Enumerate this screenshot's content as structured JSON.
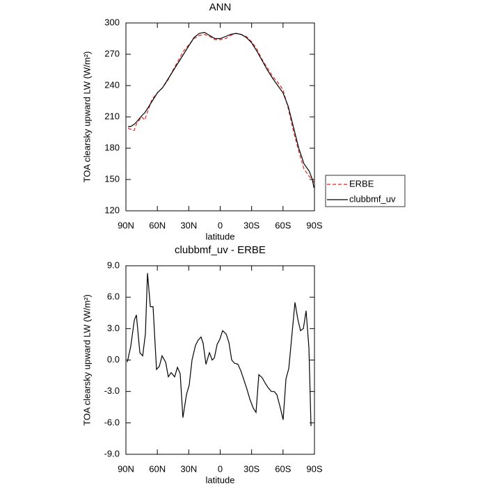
{
  "chart_data": [
    {
      "type": "line",
      "title": "ANN",
      "x_label": "latitude",
      "y_label": "TOA clearsky upward LW (W/m²)",
      "x": [
        88,
        85,
        82,
        80,
        75,
        72,
        70,
        65,
        60,
        55,
        50,
        45,
        40,
        35,
        30,
        25,
        20,
        15,
        10,
        5,
        0,
        -5,
        -10,
        -15,
        -20,
        -25,
        -30,
        -35,
        -40,
        -45,
        -50,
        -55,
        -60,
        -65,
        -70,
        -75,
        -80,
        -85,
        -88,
        -89.5
      ],
      "series": [
        {
          "name": "ERBE",
          "color": "#e8231c",
          "line_style": "dashed",
          "values": [
            199,
            198,
            197,
            203,
            210,
            207,
            213,
            227,
            233,
            238,
            245,
            255,
            264,
            273,
            279,
            285,
            288,
            289,
            287,
            284,
            284,
            285,
            288,
            290,
            289,
            287,
            282,
            275,
            265,
            257,
            249,
            243,
            236,
            218,
            196,
            177,
            160,
            153,
            150,
            147
          ]
        },
        {
          "name": "clubbmf_uv",
          "color": "#000000",
          "line_style": "solid",
          "values": [
            200.5,
            201,
            203,
            205,
            211,
            214,
            217,
            225,
            233,
            238,
            246,
            254,
            262,
            270,
            278,
            286,
            290,
            291,
            288,
            285,
            285,
            287,
            289,
            290,
            289,
            286,
            281,
            273,
            264,
            255,
            247,
            240,
            233,
            220,
            200,
            180,
            165,
            158,
            150,
            142
          ]
        }
      ],
      "xlim": [
        90,
        -90
      ],
      "xticks": [
        {
          "value": 90,
          "label": "90N"
        },
        {
          "value": 60,
          "label": "60N"
        },
        {
          "value": 30,
          "label": "30N"
        },
        0,
        {
          "value": -30,
          "label": "30S"
        },
        {
          "value": -60,
          "label": "60S"
        },
        {
          "value": -90,
          "label": "90S"
        }
      ],
      "ylim": [
        120,
        300
      ],
      "yticks": [
        120,
        150,
        180,
        210,
        240,
        270,
        300
      ],
      "legend": "outside-right"
    },
    {
      "type": "line",
      "title": "clubbmf_uv - ERBE",
      "x_label": "latitude",
      "y_label": "TOA clearsky upward LW (W/m²)",
      "x": [
        88.7,
        85.4,
        82,
        80,
        76.7,
        74,
        71.4,
        69.4,
        66.7,
        64.1,
        60.8,
        58.1,
        55.5,
        52.1,
        49.5,
        46.8,
        43.5,
        40.8,
        38.2,
        35.6,
        32.2,
        29.6,
        26.9,
        23.6,
        21,
        18.3,
        16.3,
        13.6,
        10.3,
        7.6,
        5.6,
        2.9,
        0.3,
        -2.3,
        -5.6,
        -8.3,
        -11,
        -13.6,
        -16.9,
        -19.6,
        -22.3,
        -25.6,
        -28.2,
        -31.6,
        -34.2,
        -36.9,
        -40.2,
        -42.9,
        -45.5,
        -48.8,
        -51.5,
        -54.1,
        -57.5,
        -60.1,
        -62.8,
        -65.5,
        -68.1,
        -71.4,
        -74.1,
        -76.7,
        -79.4,
        -82,
        -84.7,
        -86.7
      ],
      "values": [
        -0.2,
        1.3,
        3.8,
        4.3,
        0.7,
        0.4,
        2.5,
        8.3,
        5.1,
        5.1,
        -0.9,
        -0.6,
        0.4,
        -0.2,
        -1.6,
        -1.2,
        -1.6,
        -0.7,
        -1.3,
        -5.5,
        -3.3,
        -2.4,
        0,
        1.4,
        1.9,
        2.2,
        1.6,
        -0.4,
        0.7,
        0,
        0.2,
        1.5,
        2,
        2.8,
        2.5,
        1.7,
        0,
        -0.3,
        -0.4,
        -1,
        -1.8,
        -2.8,
        -3.7,
        -4.6,
        -5,
        -1.4,
        -1.7,
        -2.2,
        -2.6,
        -3,
        -3,
        -3.3,
        -4.6,
        -5.7,
        -1.8,
        -0.8,
        2,
        5.5,
        3.9,
        2.8,
        3,
        4.7,
        1.2,
        -6.3
      ],
      "color": "#000000",
      "xlim": [
        90,
        -90
      ],
      "xticks": [
        {
          "value": 90,
          "label": "90N"
        },
        {
          "value": 60,
          "label": "60N"
        },
        {
          "value": 30,
          "label": "30N"
        },
        0,
        {
          "value": -30,
          "label": "30S"
        },
        {
          "value": -60,
          "label": "60S"
        },
        {
          "value": -90,
          "label": "90S"
        }
      ],
      "ylim": [
        -9,
        9
      ],
      "yticks": [
        {
          "value": -9,
          "label": "-9.0"
        },
        {
          "value": -6,
          "label": "-6.0"
        },
        {
          "value": -3,
          "label": "-3.0"
        },
        {
          "value": 0,
          "label": "0.0"
        },
        {
          "value": 3,
          "label": "3.0"
        },
        {
          "value": 6,
          "label": "6.0"
        },
        {
          "value": 9,
          "label": "9.0"
        }
      ]
    }
  ]
}
